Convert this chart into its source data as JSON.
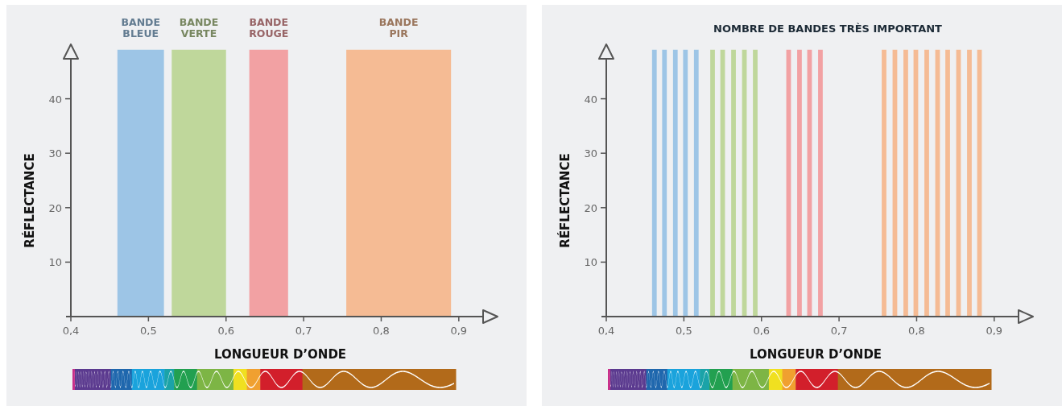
{
  "chart_data": [
    {
      "type": "area",
      "xlabel": "LONGUEUR D’ONDE",
      "ylabel": "RÉFLECTANCE",
      "xlim": [
        0.4,
        0.95
      ],
      "ylim": [
        0,
        50
      ],
      "xticks": [
        {
          "value": 0.4,
          "label": "0,4"
        },
        {
          "value": 0.5,
          "label": "0,5"
        },
        {
          "value": 0.6,
          "label": "0,6"
        },
        {
          "value": 0.7,
          "label": "0,7"
        },
        {
          "value": 0.8,
          "label": "0,8"
        },
        {
          "value": 0.9,
          "label": "0,9"
        }
      ],
      "yticks": [
        10,
        20,
        30,
        40
      ],
      "series": [
        {
          "name": "BANDE BLEUE",
          "color": "#9dc5e6",
          "x": [
            0.46,
            0.52
          ],
          "values": [
            49,
            49
          ]
        },
        {
          "name": "BANDE VERTE",
          "color": "#bfd79b",
          "x": [
            0.53,
            0.6
          ],
          "values": [
            49,
            49
          ]
        },
        {
          "name": "BANDE ROUGE",
          "color": "#f2a1a3",
          "x": [
            0.63,
            0.68
          ],
          "values": [
            49,
            49
          ]
        },
        {
          "name": "BANDE PIR",
          "color": "#f5bb94",
          "x": [
            0.755,
            0.89
          ],
          "values": [
            49,
            49
          ]
        }
      ]
    },
    {
      "type": "area",
      "title": "NOMBRE DE BANDES TRÈS IMPORTANT",
      "xlabel": "LONGUEUR D’ONDE",
      "ylabel": "RÉFLECTANCE",
      "xlim": [
        0.4,
        0.95
      ],
      "ylim": [
        0,
        50
      ],
      "xticks": [
        {
          "value": 0.4,
          "label": "0,4"
        },
        {
          "value": 0.5,
          "label": "0,5"
        },
        {
          "value": 0.6,
          "label": "0,6"
        },
        {
          "value": 0.7,
          "label": "0,7"
        },
        {
          "value": 0.8,
          "label": "0,8"
        },
        {
          "value": 0.9,
          "label": "0,9"
        }
      ],
      "yticks": [
        10,
        20,
        30,
        40
      ],
      "series": [
        {
          "color": "#9dc5e6",
          "x": [
            0.459,
            0.465
          ],
          "values": [
            49,
            49
          ]
        },
        {
          "color": "#9dc5e6",
          "x": [
            0.472,
            0.478
          ],
          "values": [
            49,
            49
          ]
        },
        {
          "color": "#9dc5e6",
          "x": [
            0.486,
            0.492
          ],
          "values": [
            49,
            49
          ]
        },
        {
          "color": "#9dc5e6",
          "x": [
            0.499,
            0.505
          ],
          "values": [
            49,
            49
          ]
        },
        {
          "color": "#9dc5e6",
          "x": [
            0.513,
            0.519
          ],
          "values": [
            49,
            49
          ]
        },
        {
          "color": "#bfd79b",
          "x": [
            0.534,
            0.54
          ],
          "values": [
            49,
            49
          ]
        },
        {
          "color": "#bfd79b",
          "x": [
            0.547,
            0.553
          ],
          "values": [
            49,
            49
          ]
        },
        {
          "color": "#bfd79b",
          "x": [
            0.561,
            0.567
          ],
          "values": [
            49,
            49
          ]
        },
        {
          "color": "#bfd79b",
          "x": [
            0.575,
            0.581
          ],
          "values": [
            49,
            49
          ]
        },
        {
          "color": "#bfd79b",
          "x": [
            0.589,
            0.595
          ],
          "values": [
            49,
            49
          ]
        },
        {
          "color": "#f2a1a3",
          "x": [
            0.632,
            0.638
          ],
          "values": [
            49,
            49
          ]
        },
        {
          "color": "#f2a1a3",
          "x": [
            0.646,
            0.652
          ],
          "values": [
            49,
            49
          ]
        },
        {
          "color": "#f2a1a3",
          "x": [
            0.659,
            0.665
          ],
          "values": [
            49,
            49
          ]
        },
        {
          "color": "#f2a1a3",
          "x": [
            0.673,
            0.679
          ],
          "values": [
            49,
            49
          ]
        },
        {
          "color": "#f5bb94",
          "x": [
            0.755,
            0.761
          ],
          "values": [
            49,
            49
          ]
        },
        {
          "color": "#f5bb94",
          "x": [
            0.769,
            0.775
          ],
          "values": [
            49,
            49
          ]
        },
        {
          "color": "#f5bb94",
          "x": [
            0.783,
            0.789
          ],
          "values": [
            49,
            49
          ]
        },
        {
          "color": "#f5bb94",
          "x": [
            0.796,
            0.802
          ],
          "values": [
            49,
            49
          ]
        },
        {
          "color": "#f5bb94",
          "x": [
            0.81,
            0.816
          ],
          "values": [
            49,
            49
          ]
        },
        {
          "color": "#f5bb94",
          "x": [
            0.824,
            0.83
          ],
          "values": [
            49,
            49
          ]
        },
        {
          "color": "#f5bb94",
          "x": [
            0.837,
            0.843
          ],
          "values": [
            49,
            49
          ]
        },
        {
          "color": "#f5bb94",
          "x": [
            0.851,
            0.857
          ],
          "values": [
            49,
            49
          ]
        },
        {
          "color": "#f5bb94",
          "x": [
            0.865,
            0.871
          ],
          "values": [
            49,
            49
          ]
        },
        {
          "color": "#f5bb94",
          "x": [
            0.878,
            0.884
          ],
          "values": [
            49,
            49
          ]
        }
      ]
    }
  ]
}
